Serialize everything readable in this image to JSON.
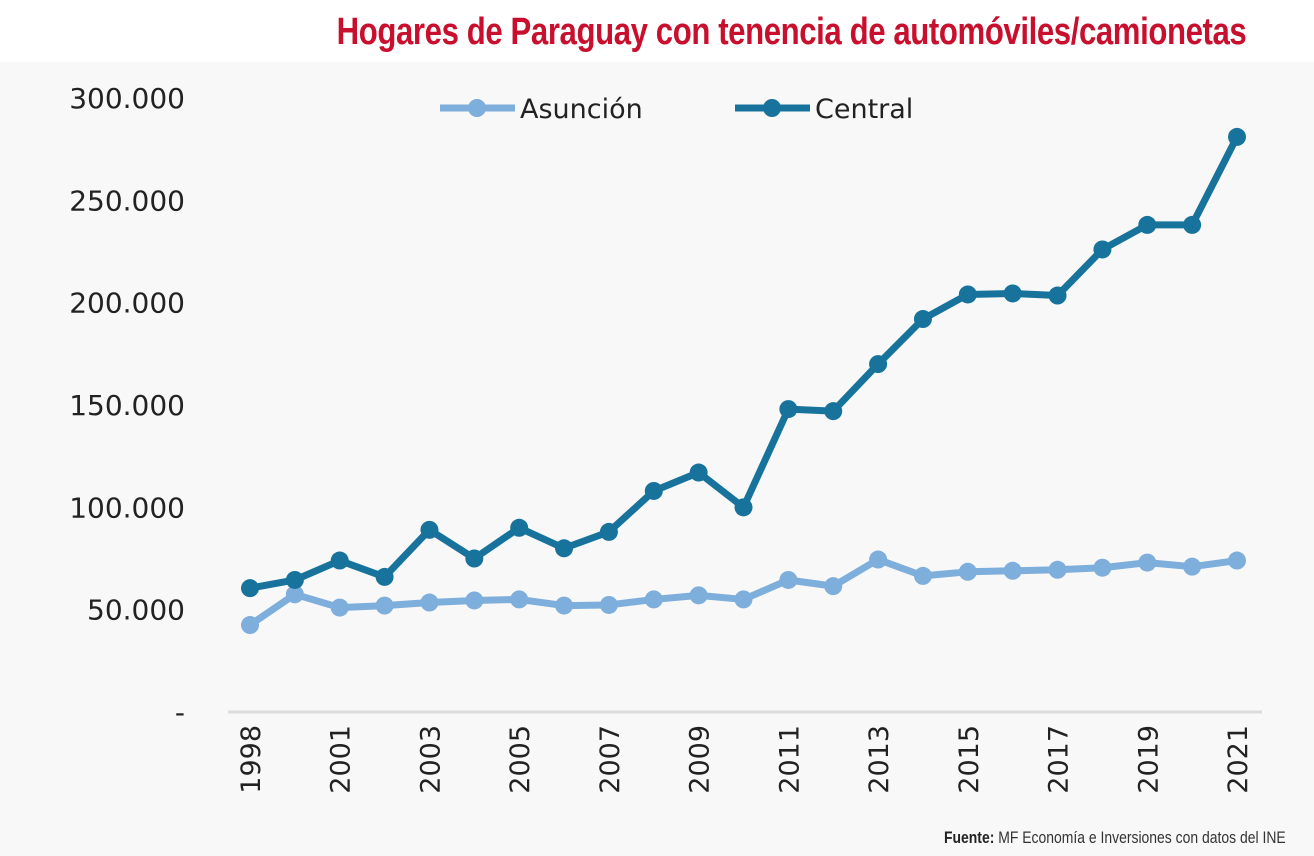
{
  "title": "Hogares de Paraguay con tenencia de automóviles/camionetas",
  "source": {
    "label": "Fuente:",
    "text": "MF Economía e Inversiones con datos del INE"
  },
  "chart_data": {
    "type": "line",
    "title": "Hogares de Paraguay con tenencia de automóviles/camionetas",
    "categories": [
      "1998",
      "2000",
      "2001",
      "2002",
      "2003",
      "2004",
      "2005",
      "2006",
      "2007",
      "2008",
      "2009",
      "2010",
      "2011",
      "2012",
      "2013",
      "2014",
      "2015",
      "2016",
      "2017",
      "2018",
      "2019",
      "2020",
      "2021"
    ],
    "tick_labels": {
      "0": "1998",
      "2": "2001",
      "4": "2003",
      "6": "2005",
      "8": "2007",
      "10": "2009",
      "12": "2011",
      "14": "2013",
      "16": "2015",
      "18": "2017",
      "20": "2019",
      "22": "2021"
    },
    "y_ticks": [
      {
        "value": 0,
        "label": "-"
      },
      {
        "value": 50000,
        "label": "50.000"
      },
      {
        "value": 100000,
        "label": "100.000"
      },
      {
        "value": 150000,
        "label": "150.000"
      },
      {
        "value": 200000,
        "label": "200.000"
      },
      {
        "value": 250000,
        "label": "250.000"
      },
      {
        "value": 300000,
        "label": "300.000"
      }
    ],
    "ylim": [
      0,
      300000
    ],
    "grid": false,
    "legend_position": "top",
    "series": [
      {
        "name": "Asunción",
        "color": "#7eaedb",
        "values": [
          42500,
          57500,
          51000,
          52000,
          53500,
          54500,
          55000,
          52000,
          52300,
          55000,
          57000,
          55000,
          64500,
          61500,
          74500,
          66500,
          68500,
          69000,
          69500,
          70500,
          73000,
          71000,
          74000
        ]
      },
      {
        "name": "Central",
        "color": "#17739c",
        "values": [
          60500,
          64500,
          74000,
          66000,
          89000,
          75000,
          90000,
          80000,
          88000,
          108000,
          117000,
          100000,
          148000,
          147000,
          170000,
          192000,
          204000,
          204500,
          203500,
          226000,
          238000,
          238000,
          281000
        ]
      }
    ]
  }
}
